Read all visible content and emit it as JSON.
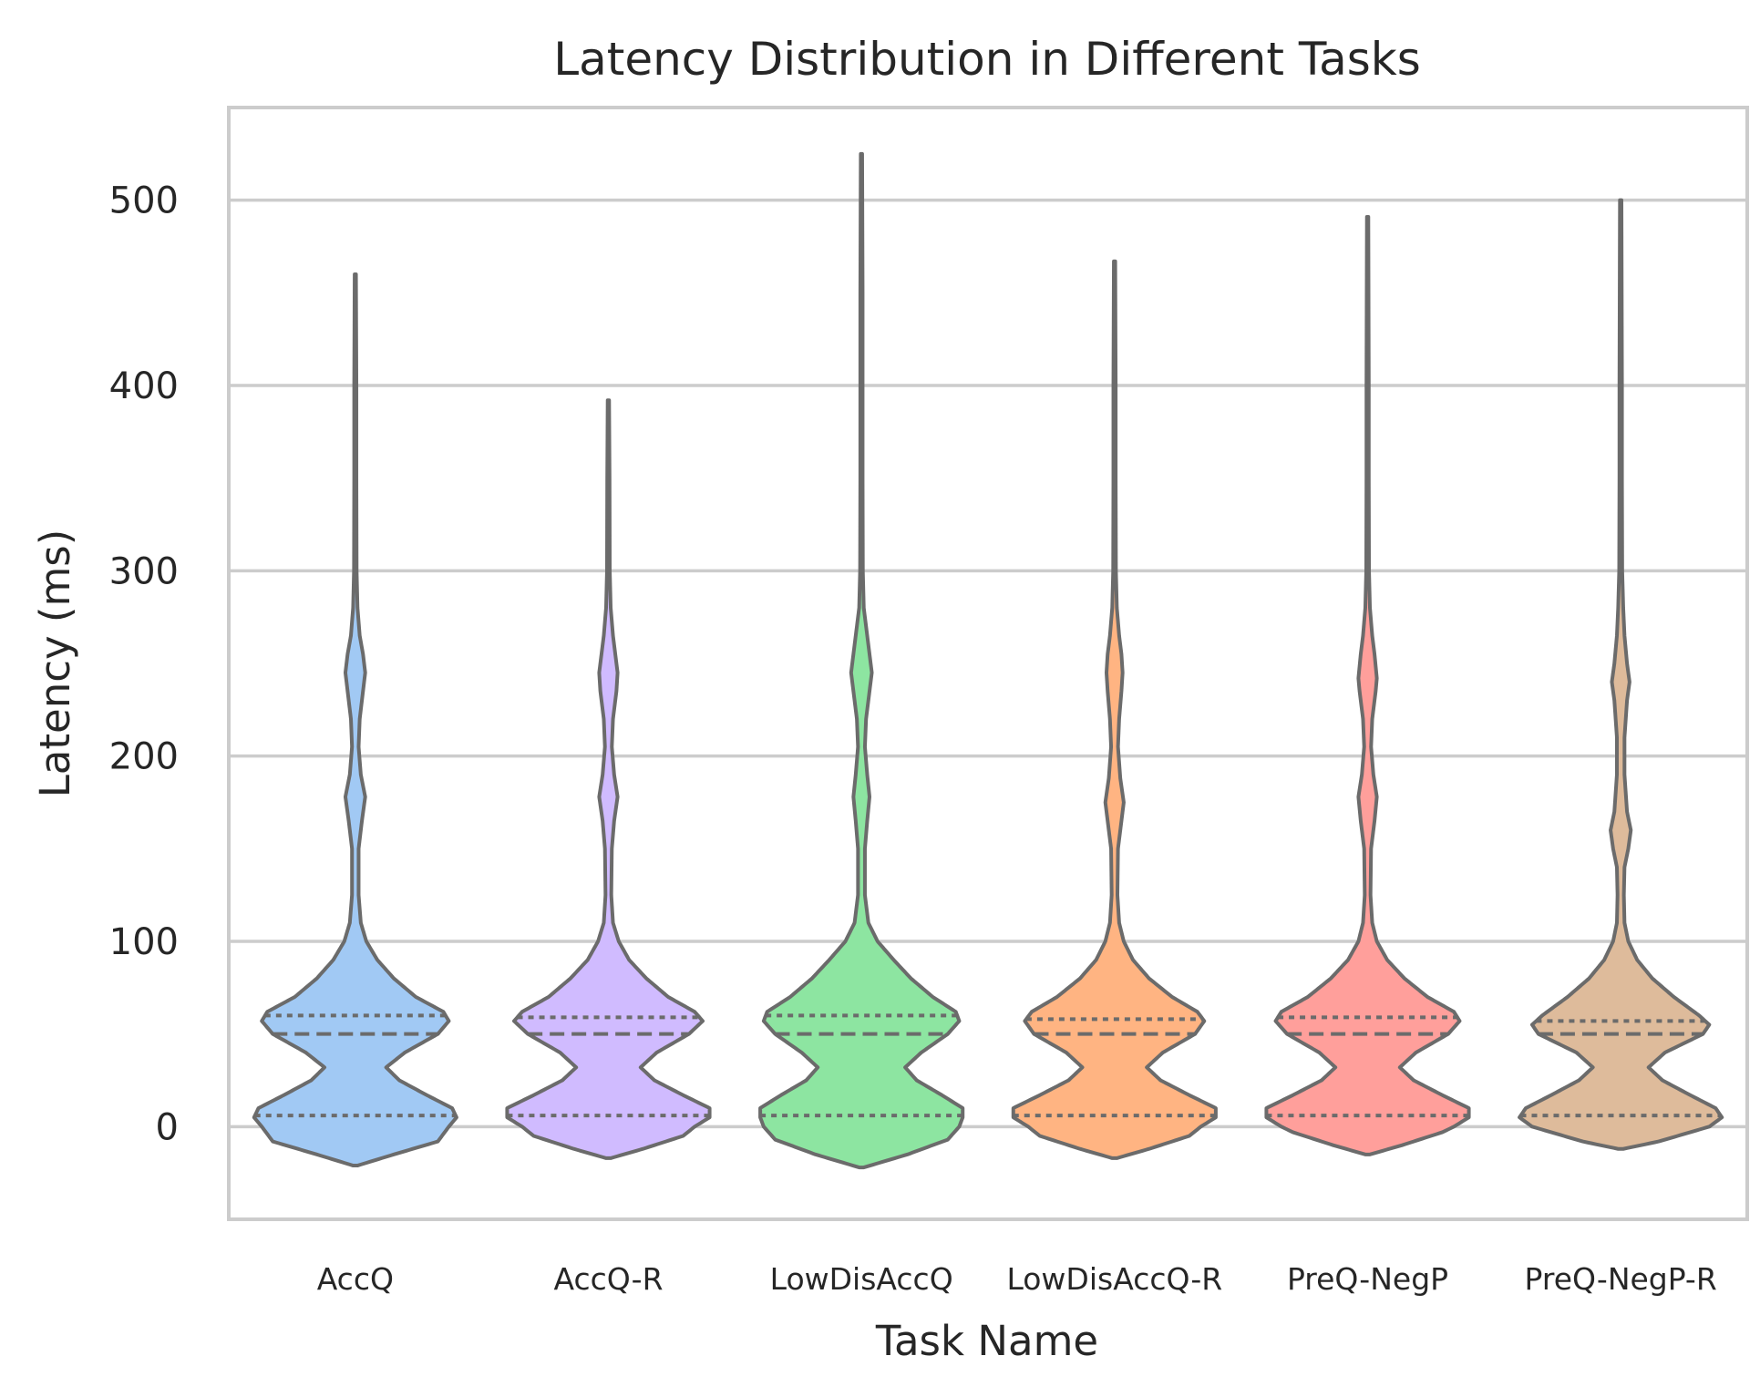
{
  "chart_data": {
    "type": "violin",
    "title": "Latency Distribution in Different Tasks",
    "xlabel": "Task Name",
    "ylabel": "Latency (ms)",
    "ylim": [
      -50,
      550
    ],
    "yticks": [
      0,
      100,
      200,
      300,
      400,
      500
    ],
    "grid": "horizontal",
    "inner": "quartile",
    "categories": [
      "AccQ",
      "AccQ-R",
      "LowDisAccQ",
      "LowDisAccQ-R",
      "PreQ-NegP",
      "PreQ-NegP-R"
    ],
    "colors": [
      "#a1c9f4",
      "#d0bbff",
      "#8de5a1",
      "#ffb482",
      "#ff9f9b",
      "#debb9b"
    ],
    "outline_color": "#6b6b6b",
    "series": [
      {
        "category": "AccQ",
        "min": -21,
        "max": 460,
        "q1": 6,
        "median": 50,
        "q3": 60,
        "density": [
          [
            -21,
            2
          ],
          [
            -15,
            35
          ],
          [
            -8,
            75
          ],
          [
            0,
            85
          ],
          [
            5,
            92
          ],
          [
            10,
            88
          ],
          [
            17,
            65
          ],
          [
            25,
            40
          ],
          [
            32,
            28
          ],
          [
            40,
            45
          ],
          [
            50,
            75
          ],
          [
            57,
            85
          ],
          [
            62,
            80
          ],
          [
            70,
            55
          ],
          [
            80,
            35
          ],
          [
            90,
            20
          ],
          [
            100,
            10
          ],
          [
            110,
            5
          ],
          [
            125,
            3
          ],
          [
            150,
            3
          ],
          [
            165,
            6
          ],
          [
            178,
            9
          ],
          [
            190,
            5
          ],
          [
            205,
            3
          ],
          [
            220,
            4
          ],
          [
            235,
            7
          ],
          [
            245,
            9
          ],
          [
            255,
            7
          ],
          [
            265,
            4
          ],
          [
            280,
            2
          ],
          [
            300,
            1.2
          ],
          [
            350,
            1
          ],
          [
            400,
            1
          ],
          [
            460,
            0.6
          ]
        ]
      },
      {
        "category": "AccQ-R",
        "min": -17,
        "max": 392,
        "q1": 6,
        "median": 50,
        "q3": 59,
        "density": [
          [
            -17,
            2
          ],
          [
            -12,
            30
          ],
          [
            -5,
            65
          ],
          [
            0,
            75
          ],
          [
            5,
            88
          ],
          [
            10,
            88
          ],
          [
            17,
            65
          ],
          [
            25,
            40
          ],
          [
            32,
            28
          ],
          [
            40,
            42
          ],
          [
            50,
            70
          ],
          [
            57,
            82
          ],
          [
            62,
            75
          ],
          [
            70,
            52
          ],
          [
            80,
            33
          ],
          [
            90,
            18
          ],
          [
            100,
            9
          ],
          [
            110,
            4
          ],
          [
            125,
            2.5
          ],
          [
            150,
            3
          ],
          [
            165,
            5
          ],
          [
            178,
            8
          ],
          [
            190,
            5
          ],
          [
            205,
            3
          ],
          [
            220,
            4
          ],
          [
            235,
            7
          ],
          [
            245,
            8
          ],
          [
            255,
            6
          ],
          [
            265,
            4
          ],
          [
            280,
            2
          ],
          [
            300,
            1.2
          ],
          [
            350,
            1
          ],
          [
            392,
            0.6
          ]
        ]
      },
      {
        "category": "LowDisAccQ",
        "min": -22,
        "max": 525,
        "q1": 6,
        "median": 50,
        "q3": 60,
        "density": [
          [
            -22,
            2
          ],
          [
            -15,
            40
          ],
          [
            -7,
            75
          ],
          [
            0,
            85
          ],
          [
            5,
            88
          ],
          [
            10,
            88
          ],
          [
            17,
            70
          ],
          [
            25,
            48
          ],
          [
            32,
            38
          ],
          [
            40,
            52
          ],
          [
            50,
            75
          ],
          [
            57,
            85
          ],
          [
            62,
            82
          ],
          [
            70,
            62
          ],
          [
            80,
            43
          ],
          [
            90,
            28
          ],
          [
            100,
            14
          ],
          [
            110,
            6
          ],
          [
            125,
            3
          ],
          [
            150,
            3
          ],
          [
            165,
            5
          ],
          [
            178,
            7
          ],
          [
            190,
            5
          ],
          [
            205,
            3
          ],
          [
            220,
            4
          ],
          [
            235,
            7
          ],
          [
            245,
            9
          ],
          [
            255,
            7
          ],
          [
            265,
            5
          ],
          [
            280,
            2
          ],
          [
            300,
            1.2
          ],
          [
            350,
            1
          ],
          [
            400,
            1
          ],
          [
            450,
            1
          ],
          [
            525,
            0.6
          ]
        ]
      },
      {
        "category": "LowDisAccQ-R",
        "min": -17,
        "max": 467,
        "q1": 6,
        "median": 50,
        "q3": 58,
        "density": [
          [
            -17,
            2
          ],
          [
            -12,
            30
          ],
          [
            -5,
            65
          ],
          [
            0,
            75
          ],
          [
            5,
            88
          ],
          [
            10,
            88
          ],
          [
            17,
            65
          ],
          [
            25,
            40
          ],
          [
            32,
            28
          ],
          [
            40,
            42
          ],
          [
            50,
            70
          ],
          [
            57,
            78
          ],
          [
            62,
            72
          ],
          [
            70,
            50
          ],
          [
            80,
            30
          ],
          [
            90,
            16
          ],
          [
            100,
            8
          ],
          [
            110,
            4
          ],
          [
            125,
            2.5
          ],
          [
            150,
            3
          ],
          [
            165,
            6
          ],
          [
            175,
            8
          ],
          [
            188,
            5
          ],
          [
            205,
            3
          ],
          [
            220,
            4
          ],
          [
            235,
            6
          ],
          [
            245,
            7
          ],
          [
            255,
            6
          ],
          [
            265,
            4
          ],
          [
            280,
            2
          ],
          [
            300,
            1.2
          ],
          [
            350,
            1
          ],
          [
            400,
            1
          ],
          [
            467,
            0.6
          ]
        ]
      },
      {
        "category": "PreQ-NegP",
        "min": -15,
        "max": 491,
        "q1": 6,
        "median": 50,
        "q3": 59,
        "density": [
          [
            -15,
            2
          ],
          [
            -10,
            30
          ],
          [
            -3,
            65
          ],
          [
            0,
            75
          ],
          [
            5,
            88
          ],
          [
            10,
            88
          ],
          [
            17,
            65
          ],
          [
            25,
            40
          ],
          [
            32,
            28
          ],
          [
            40,
            42
          ],
          [
            50,
            70
          ],
          [
            57,
            80
          ],
          [
            62,
            75
          ],
          [
            70,
            52
          ],
          [
            80,
            32
          ],
          [
            90,
            17
          ],
          [
            100,
            8
          ],
          [
            110,
            4
          ],
          [
            125,
            2.5
          ],
          [
            150,
            3
          ],
          [
            165,
            6
          ],
          [
            178,
            8
          ],
          [
            190,
            5
          ],
          [
            205,
            3
          ],
          [
            220,
            4
          ],
          [
            235,
            7
          ],
          [
            242,
            8
          ],
          [
            255,
            6
          ],
          [
            265,
            4
          ],
          [
            280,
            2
          ],
          [
            300,
            1.2
          ],
          [
            350,
            1
          ],
          [
            400,
            1
          ],
          [
            491,
            0.6
          ]
        ]
      },
      {
        "category": "PreQ-NegP-R",
        "min": -12,
        "max": 500,
        "q1": 6,
        "median": 50,
        "q3": 57,
        "density": [
          [
            -12,
            2
          ],
          [
            -8,
            30
          ],
          [
            0,
            70
          ],
          [
            5,
            80
          ],
          [
            10,
            75
          ],
          [
            17,
            55
          ],
          [
            25,
            33
          ],
          [
            32,
            22
          ],
          [
            40,
            35
          ],
          [
            50,
            65
          ],
          [
            55,
            70
          ],
          [
            60,
            62
          ],
          [
            70,
            42
          ],
          [
            80,
            25
          ],
          [
            90,
            13
          ],
          [
            100,
            6
          ],
          [
            110,
            3
          ],
          [
            125,
            2.5
          ],
          [
            140,
            3
          ],
          [
            150,
            6
          ],
          [
            160,
            8
          ],
          [
            170,
            5
          ],
          [
            190,
            3
          ],
          [
            210,
            3
          ],
          [
            230,
            5
          ],
          [
            240,
            7
          ],
          [
            250,
            5
          ],
          [
            265,
            3
          ],
          [
            280,
            2
          ],
          [
            300,
            1.2
          ],
          [
            350,
            1
          ],
          [
            400,
            1
          ],
          [
            500,
            0.6
          ]
        ]
      }
    ]
  }
}
